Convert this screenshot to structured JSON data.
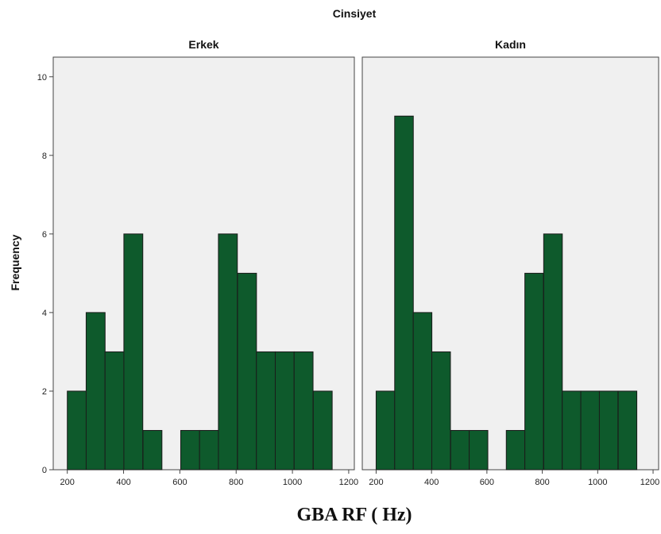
{
  "chart_data": {
    "type": "bar",
    "title": "Cinsiyet",
    "xlabel": "GBA RF ( Hz)",
    "ylabel": "Frequency",
    "xlim": [
      150,
      1220
    ],
    "ylim": [
      0,
      10.5
    ],
    "x_ticks": [
      200,
      400,
      600,
      800,
      1000,
      1200
    ],
    "y_ticks": [
      0,
      2,
      4,
      6,
      8,
      10
    ],
    "bin_width": 67.3,
    "bar_color": "#0e5a2c",
    "panel_background": "#f0f0f0",
    "grid": false,
    "legend": "none",
    "panels": [
      {
        "name": "Erkek",
        "bins": [
          {
            "x0": 200,
            "count": 2
          },
          {
            "x0": 267,
            "count": 4
          },
          {
            "x0": 334,
            "count": 3
          },
          {
            "x0": 401,
            "count": 6
          },
          {
            "x0": 469,
            "count": 1
          },
          {
            "x0": 603,
            "count": 1
          },
          {
            "x0": 670,
            "count": 1
          },
          {
            "x0": 737,
            "count": 6
          },
          {
            "x0": 805,
            "count": 5
          },
          {
            "x0": 872,
            "count": 3
          },
          {
            "x0": 939,
            "count": 3
          },
          {
            "x0": 1006,
            "count": 3
          },
          {
            "x0": 1074,
            "count": 2
          }
        ]
      },
      {
        "name": "Kadın",
        "bins": [
          {
            "x0": 200,
            "count": 2
          },
          {
            "x0": 267,
            "count": 9
          },
          {
            "x0": 334,
            "count": 4
          },
          {
            "x0": 401,
            "count": 3
          },
          {
            "x0": 469,
            "count": 1
          },
          {
            "x0": 536,
            "count": 1
          },
          {
            "x0": 670,
            "count": 1
          },
          {
            "x0": 737,
            "count": 5
          },
          {
            "x0": 805,
            "count": 6
          },
          {
            "x0": 872,
            "count": 2
          },
          {
            "x0": 939,
            "count": 2
          },
          {
            "x0": 1006,
            "count": 2
          },
          {
            "x0": 1074,
            "count": 2
          }
        ]
      }
    ]
  }
}
